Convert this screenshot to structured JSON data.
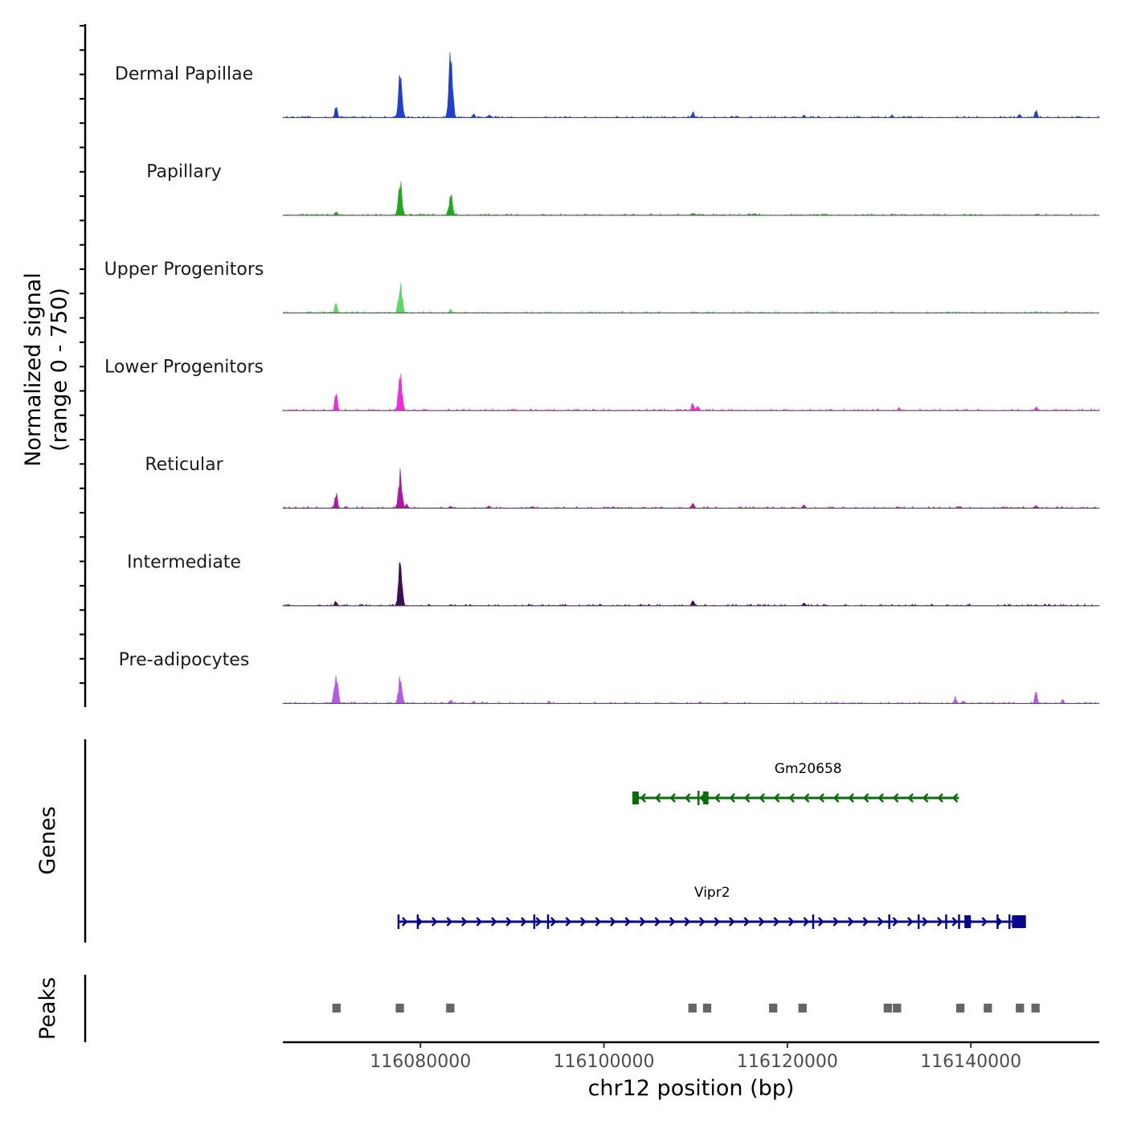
{
  "chart_data": {
    "type": "area",
    "title": "",
    "xlabel": "chr12 position (bp)",
    "coverage_ylabel": "Normalized signal\n(range 0 - 750)",
    "genes_label": "Genes",
    "peaks_label": "Peaks",
    "xlim": [
      116065000,
      116154000
    ],
    "ylim": [
      0,
      750
    ],
    "x_ticks": [
      116080000,
      116100000,
      116120000,
      116140000
    ],
    "x_tick_labels": [
      "116080000",
      "116100000",
      "116120000",
      "116140000"
    ],
    "series": [
      {
        "name": "Dermal Papillae",
        "color": "#1f3fd0",
        "peaks": [
          [
            116070800,
            140
          ],
          [
            116077800,
            470
          ],
          [
            116083300,
            750
          ],
          [
            116085800,
            40
          ],
          [
            116087500,
            30
          ],
          [
            116109700,
            60
          ],
          [
            116121800,
            30
          ],
          [
            116131400,
            30
          ],
          [
            116145300,
            40
          ],
          [
            116147100,
            75
          ]
        ]
      },
      {
        "name": "Papillary",
        "color": "#22a81f",
        "peaks": [
          [
            116070800,
            40
          ],
          [
            116077800,
            360
          ],
          [
            116083300,
            230
          ],
          [
            116109700,
            25
          ],
          [
            116131400,
            15
          ],
          [
            116147100,
            15
          ]
        ]
      },
      {
        "name": "Upper Progenitors",
        "color": "#5bd85f",
        "peaks": [
          [
            116070800,
            110
          ],
          [
            116077800,
            320
          ],
          [
            116083300,
            40
          ],
          [
            116109700,
            15
          ],
          [
            116131400,
            12
          ],
          [
            116147100,
            18
          ]
        ]
      },
      {
        "name": "Lower Progenitors",
        "color": "#f02bdc",
        "peaks": [
          [
            116070800,
            180
          ],
          [
            116077800,
            370
          ],
          [
            116109700,
            90
          ],
          [
            116110200,
            50
          ],
          [
            116132200,
            30
          ],
          [
            116147100,
            40
          ]
        ]
      },
      {
        "name": "Reticular",
        "color": "#b0189f",
        "peaks": [
          [
            116070800,
            160
          ],
          [
            116077800,
            370
          ],
          [
            116078500,
            50
          ],
          [
            116083300,
            25
          ],
          [
            116087500,
            25
          ],
          [
            116092200,
            20
          ],
          [
            116109700,
            55
          ],
          [
            116121800,
            35
          ],
          [
            116138800,
            20
          ],
          [
            116147100,
            30
          ]
        ]
      },
      {
        "name": "Intermediate",
        "color": "#3d0f54",
        "peaks": [
          [
            116070800,
            55
          ],
          [
            116077800,
            460
          ],
          [
            116109700,
            60
          ],
          [
            116121800,
            40
          ],
          [
            116083300,
            15
          ],
          [
            116147100,
            15
          ]
        ]
      },
      {
        "name": "Pre-adipocytes",
        "color": "#b85ae0",
        "peaks": [
          [
            116070800,
            340
          ],
          [
            116077800,
            285
          ],
          [
            116083300,
            40
          ],
          [
            116085800,
            25
          ],
          [
            116094000,
            25
          ],
          [
            116110500,
            20
          ],
          [
            116138300,
            70
          ],
          [
            116139200,
            35
          ],
          [
            116147100,
            120
          ],
          [
            116150000,
            40
          ]
        ]
      }
    ],
    "genes": [
      {
        "name": "Gm20658",
        "color": "#0a6e0a",
        "strand": "-",
        "start": 116103200,
        "end": 116138700,
        "exons": [
          [
            116103100,
            116103800
          ],
          [
            116110200,
            116110400
          ],
          [
            116110800,
            116111400
          ]
        ]
      },
      {
        "name": "Vipr2",
        "color": "#06068c",
        "strand": "+",
        "start": 116077600,
        "end": 116146000,
        "exons": [
          [
            116077500,
            116077700
          ],
          [
            116079600,
            116079800
          ],
          [
            116092300,
            116092500
          ],
          [
            116093800,
            116094000
          ],
          [
            116122700,
            116122900
          ],
          [
            116131000,
            116131200
          ],
          [
            116134200,
            116134400
          ],
          [
            116137200,
            116137400
          ],
          [
            116138600,
            116138800
          ],
          [
            116139300,
            116140000
          ],
          [
            116142800,
            116143000
          ],
          [
            116144100,
            116144300
          ],
          [
            116144500,
            116146000
          ]
        ]
      }
    ],
    "peaks": [
      {
        "start": 116070400,
        "end": 116071300
      },
      {
        "start": 116077300,
        "end": 116078200
      },
      {
        "start": 116082800,
        "end": 116083700
      },
      {
        "start": 116109200,
        "end": 116110100
      },
      {
        "start": 116110800,
        "end": 116111700
      },
      {
        "start": 116118000,
        "end": 116118900
      },
      {
        "start": 116121200,
        "end": 116122100
      },
      {
        "start": 116130500,
        "end": 116131400
      },
      {
        "start": 116131500,
        "end": 116132400
      },
      {
        "start": 116138400,
        "end": 116139300
      },
      {
        "start": 116141400,
        "end": 116142300
      },
      {
        "start": 116144900,
        "end": 116145800
      },
      {
        "start": 116146600,
        "end": 116147500
      }
    ],
    "peak_color": "#666666"
  }
}
